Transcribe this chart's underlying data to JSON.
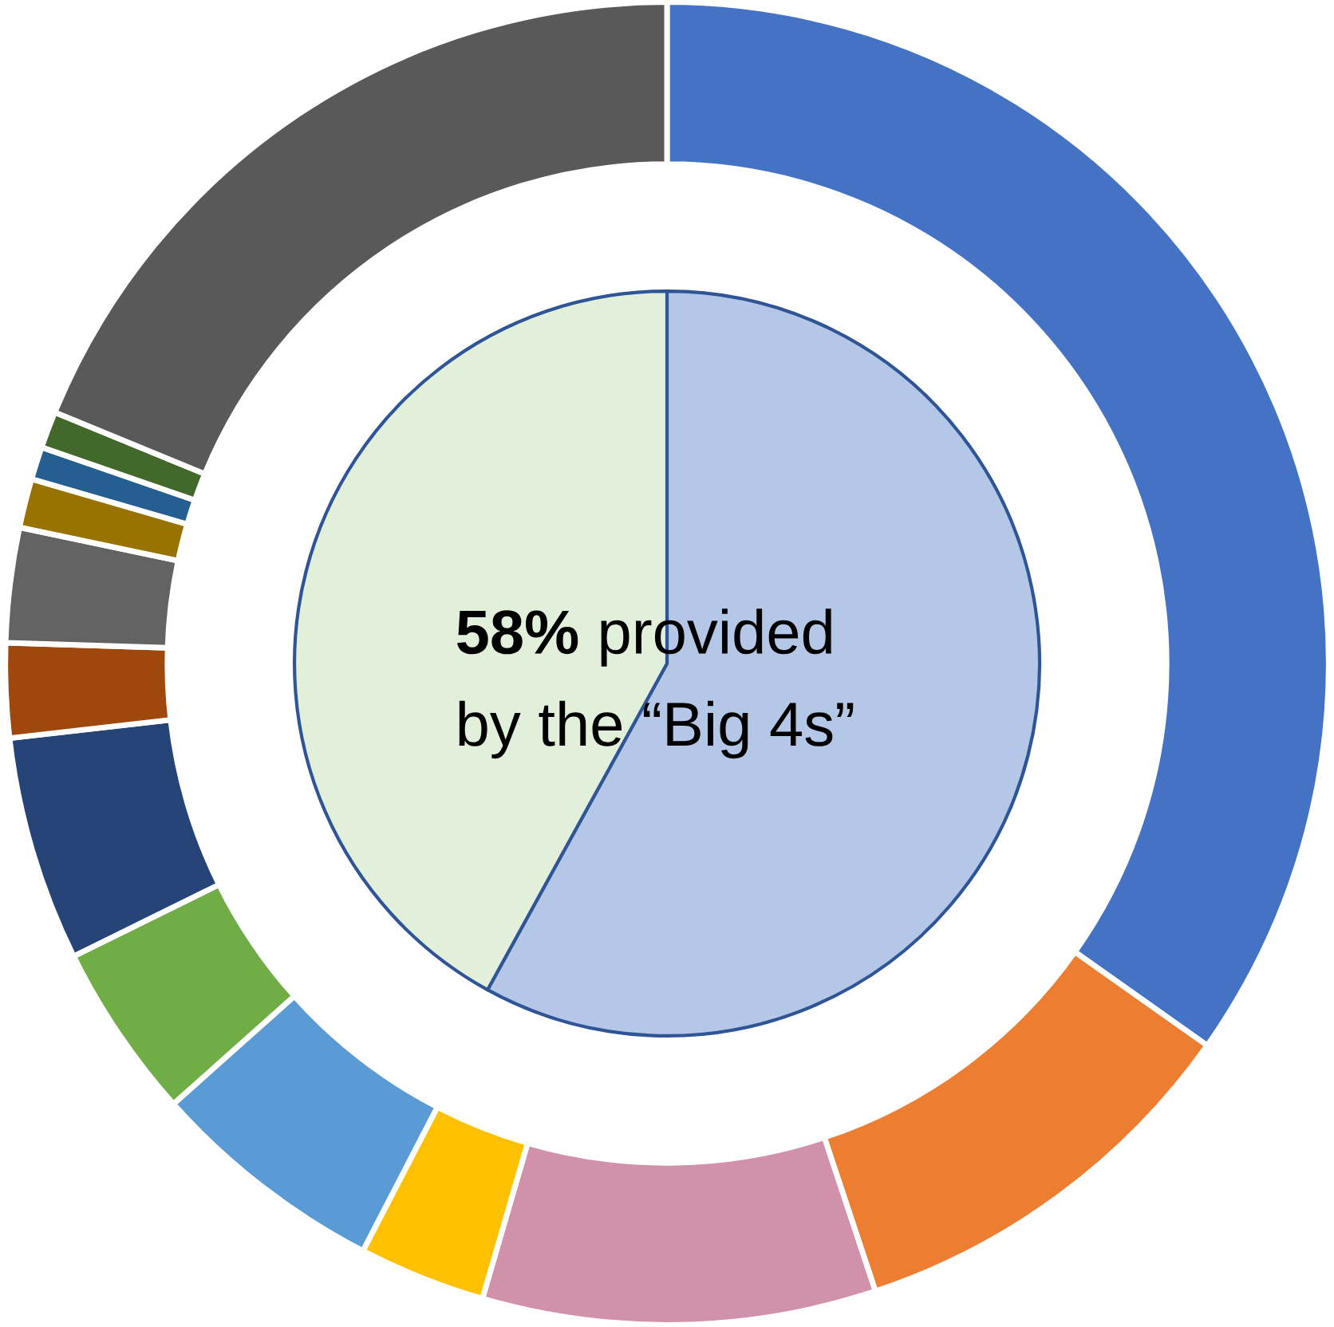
{
  "chart_data": {
    "type": "donut",
    "series": [
      {
        "values": [
          34.8,
          10.1,
          9.6,
          3.1,
          5.8,
          4.3,
          5.5,
          2.3,
          2.8,
          1.2,
          0.8,
          0.9,
          18.8
        ],
        "colors": [
          "#4472c4",
          "#ed7d31",
          "#d291ab",
          "#ffc000",
          "#5b9bd5",
          "#70ad47",
          "#264478",
          "#9e480e",
          "#636363",
          "#997300",
          "#255e91",
          "#43682b",
          "#595959"
        ]
      },
      {
        "type": "pie",
        "values": [
          58,
          42
        ],
        "colors": [
          "#b4c7e7",
          "#e2efda"
        ]
      }
    ],
    "annotations": [
      "58% provided by the “Big 4s”"
    ]
  }
}
